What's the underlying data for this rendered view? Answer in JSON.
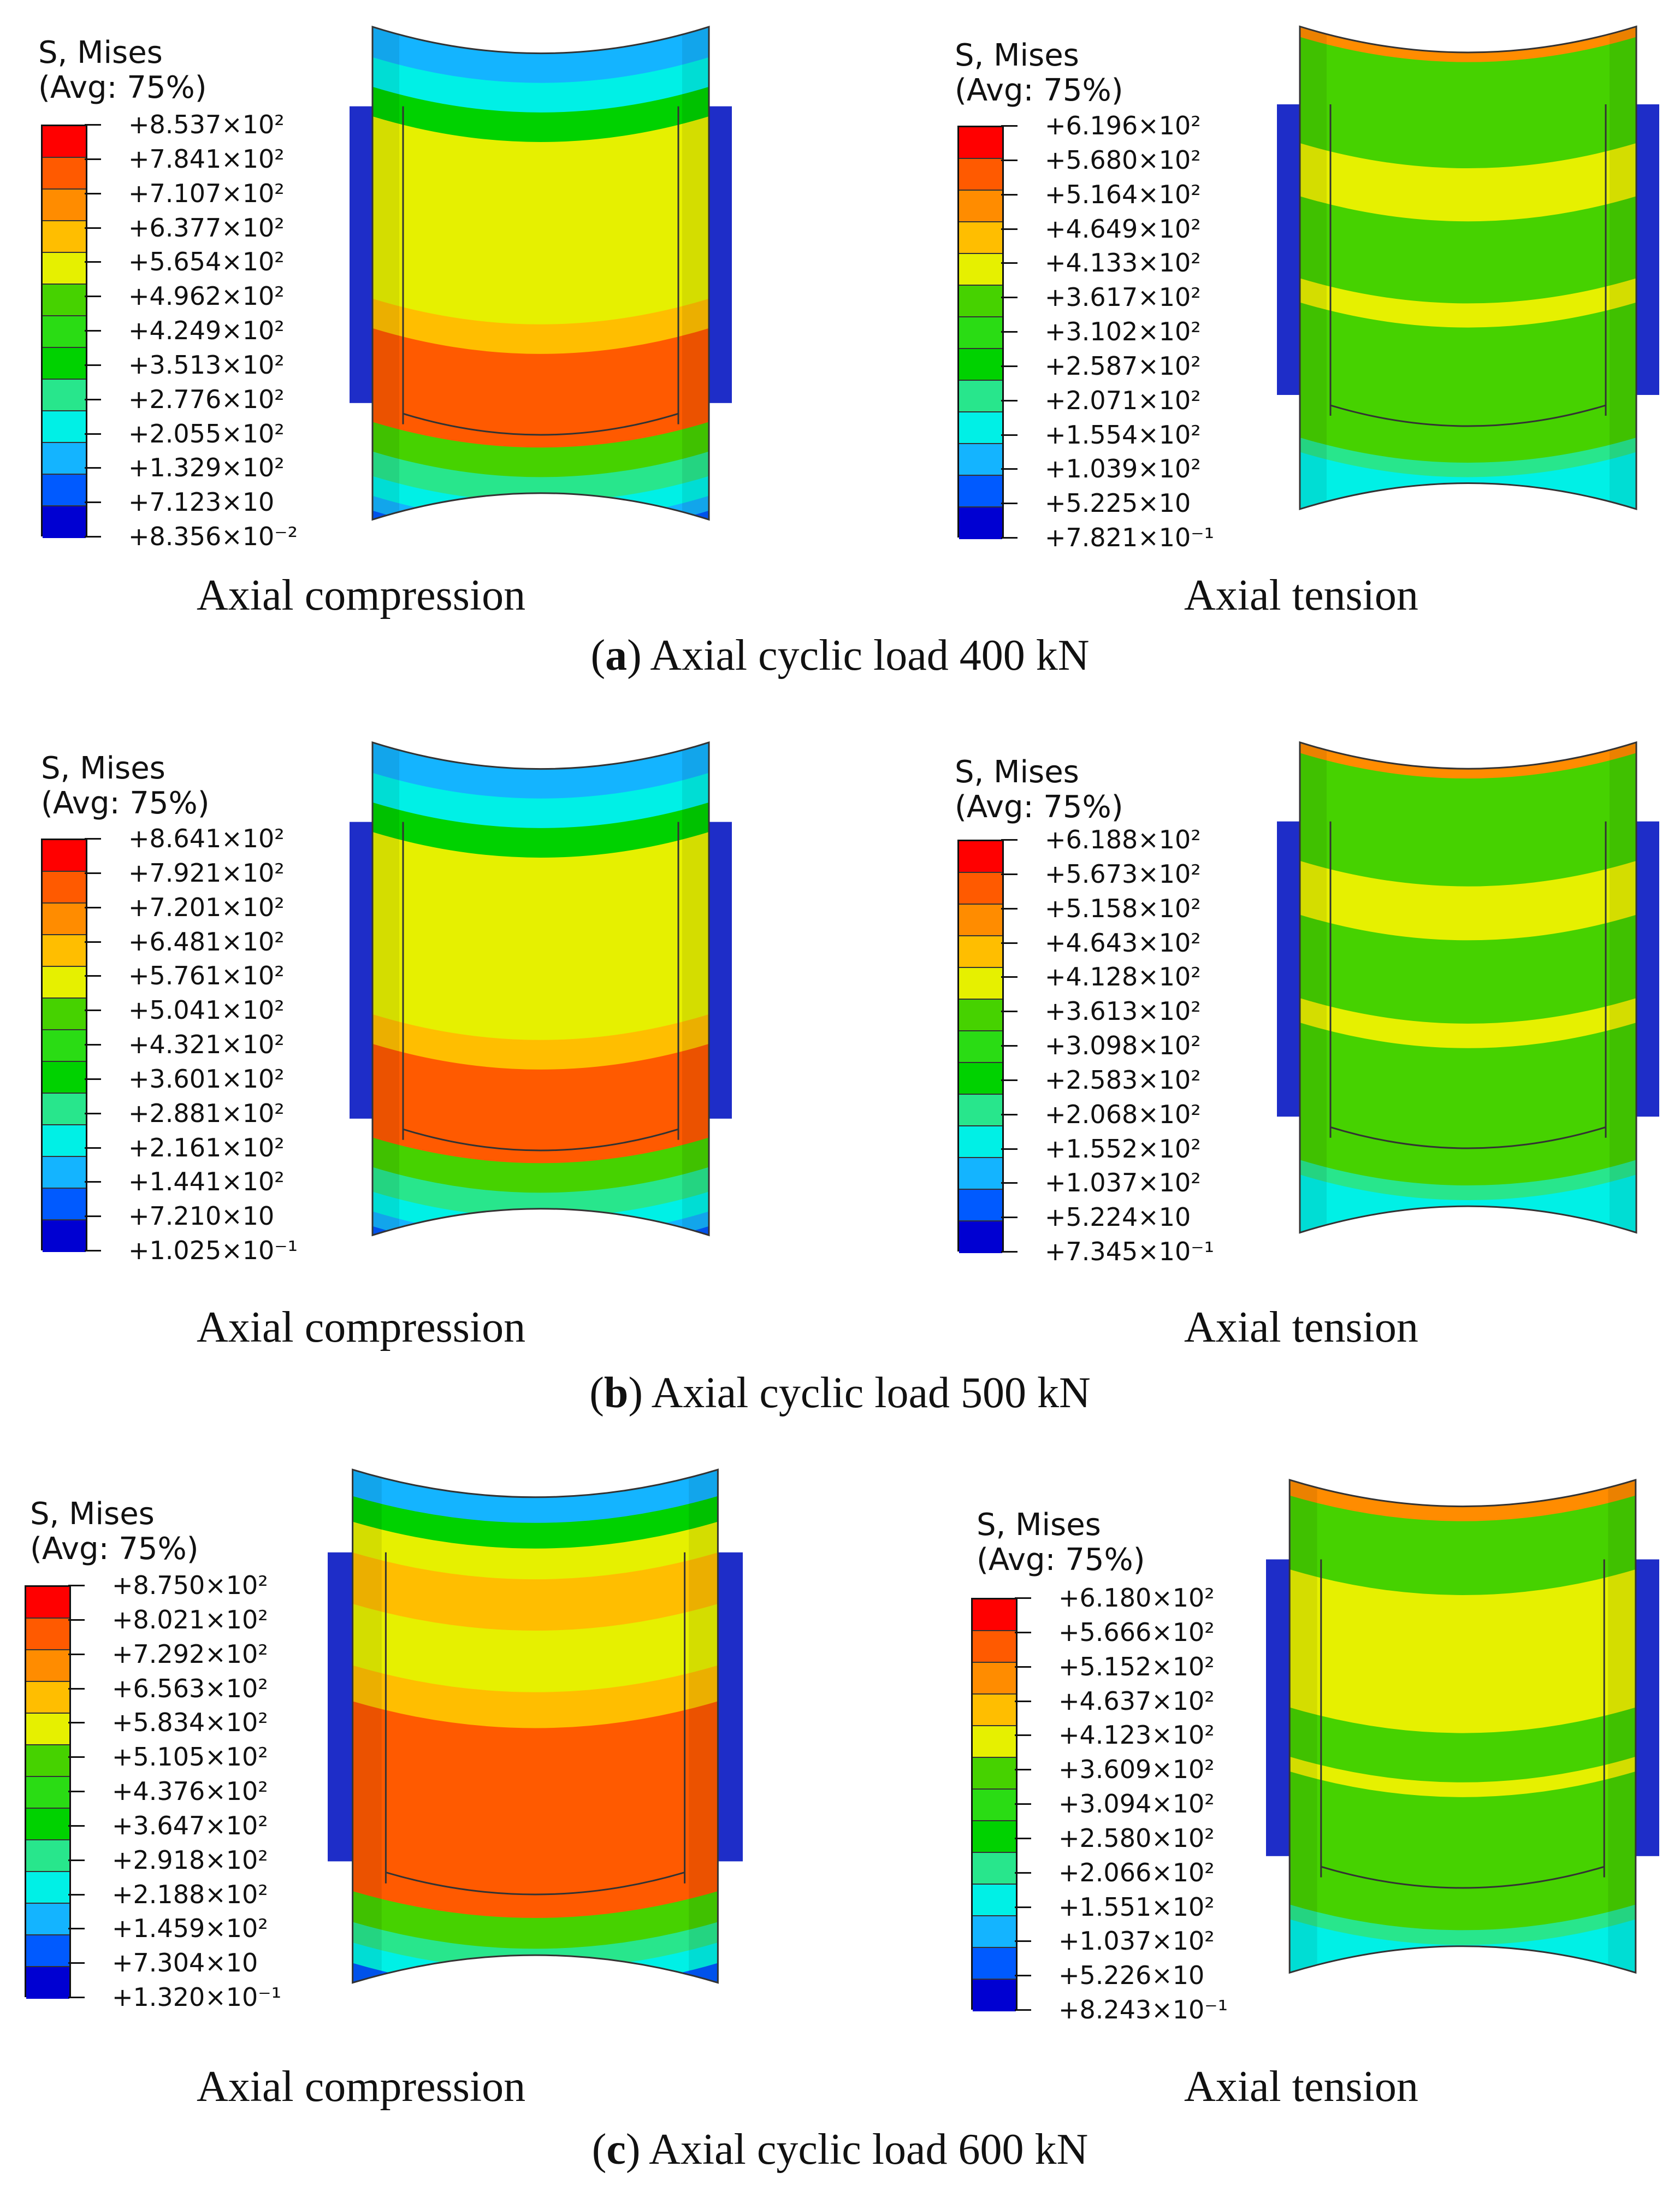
{
  "panels": [
    {
      "caption": {
        "letter": "a",
        "text": "Axial cyclic load 400 kN"
      },
      "compression": {
        "label": "Axial compression",
        "legend": {
          "title1": "S, Mises",
          "title2": "(Avg: 75%)",
          "values": [
            "+8.537×10²",
            "+7.841×10²",
            "+7.107×10²",
            "+6.377×10²",
            "+5.654×10²",
            "+4.962×10²",
            "+4.249×10²",
            "+3.513×10²",
            "+2.776×10²",
            "+2.055×10²",
            "+1.329×10²",
            "+7.123×10",
            "+8.356×10⁻²"
          ]
        }
      },
      "tension": {
        "label": "Axial tension",
        "legend": {
          "title1": "S, Mises",
          "title2": "(Avg: 75%)",
          "values": [
            "+6.196×10²",
            "+5.680×10²",
            "+5.164×10²",
            "+4.649×10²",
            "+4.133×10²",
            "+3.617×10²",
            "+3.102×10²",
            "+2.587×10²",
            "+2.071×10²",
            "+1.554×10²",
            "+1.039×10²",
            "+5.225×10",
            "+7.821×10⁻¹"
          ]
        }
      }
    },
    {
      "caption": {
        "letter": "b",
        "text": "Axial cyclic load 500 kN"
      },
      "compression": {
        "label": "Axial compression",
        "legend": {
          "title1": "S, Mises",
          "title2": "(Avg: 75%)",
          "values": [
            "+8.641×10²",
            "+7.921×10²",
            "+7.201×10²",
            "+6.481×10²",
            "+5.761×10²",
            "+5.041×10²",
            "+4.321×10²",
            "+3.601×10²",
            "+2.881×10²",
            "+2.161×10²",
            "+1.441×10²",
            "+7.210×10",
            "+1.025×10⁻¹"
          ]
        }
      },
      "tension": {
        "label": "Axial tension",
        "legend": {
          "title1": "S, Mises",
          "title2": "(Avg: 75%)",
          "values": [
            "+6.188×10²",
            "+5.673×10²",
            "+5.158×10²",
            "+4.643×10²",
            "+4.128×10²",
            "+3.613×10²",
            "+3.098×10²",
            "+2.583×10²",
            "+2.068×10²",
            "+1.552×10²",
            "+1.037×10²",
            "+5.224×10",
            "+7.345×10⁻¹"
          ]
        }
      }
    },
    {
      "caption": {
        "letter": "c",
        "text": "Axial cyclic load 600 kN"
      },
      "compression": {
        "label": "Axial compression",
        "legend": {
          "title1": "S, Mises",
          "title2": "(Avg: 75%)",
          "values": [
            "+8.750×10²",
            "+8.021×10²",
            "+7.292×10²",
            "+6.563×10²",
            "+5.834×10²",
            "+5.105×10²",
            "+4.376×10²",
            "+3.647×10²",
            "+2.918×10²",
            "+2.188×10²",
            "+1.459×10²",
            "+7.304×10",
            "+1.320×10⁻¹"
          ]
        }
      },
      "tension": {
        "label": "Axial tension",
        "legend": {
          "title1": "S, Mises",
          "title2": "(Avg: 75%)",
          "values": [
            "+6.180×10²",
            "+5.666×10²",
            "+5.152×10²",
            "+4.637×10²",
            "+4.123×10²",
            "+3.609×10²",
            "+3.094×10²",
            "+2.580×10²",
            "+2.066×10²",
            "+1.551×10²",
            "+1.037×10²",
            "+5.226×10",
            "+8.243×10⁻¹"
          ]
        }
      }
    }
  ],
  "colors": {
    "scale": [
      "#ff0000",
      "#ff5a00",
      "#ff8c00",
      "#ffbe00",
      "#e6f000",
      "#46d200",
      "#2adc14",
      "#00d200",
      "#28e68c",
      "#00f0e6",
      "#14b4ff",
      "#005aff",
      "#0000d2"
    ],
    "steel_blue": "#1e2dc8",
    "outline": "#333333"
  }
}
